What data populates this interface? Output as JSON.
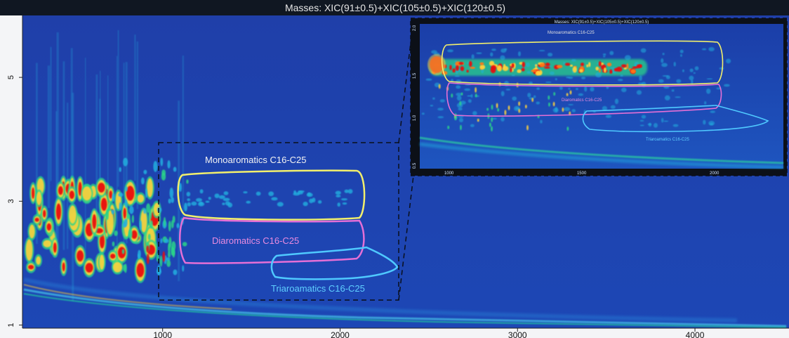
{
  "chart_data": [
    {
      "type": "heatmap",
      "title": "Masses: XIC(91±0.5)+XIC(105±0.5)+XIC(120±0.5)",
      "xlabel": "",
      "ylabel": "",
      "x_ticks": [
        1000,
        2000,
        3000,
        4000
      ],
      "y_ticks": [
        1,
        3,
        5
      ],
      "xlim": [
        210,
        4530
      ],
      "ylim": [
        0.95,
        6.0
      ],
      "colormap": [
        "#1f3ea8",
        "#1e6fd0",
        "#21b0e0",
        "#2ad48a",
        "#ffd23a",
        "#ff7a18",
        "#e81010"
      ],
      "background_color": "#1f3ea8",
      "regions": [
        {
          "label": "Monoaromatics C16-C25",
          "color": "#f2ef6c"
        },
        {
          "label": "Diaromatics C16-C25",
          "color": "#e56fd6"
        },
        {
          "label": "Triaroamatics C16-C25",
          "color": "#4fc9ff"
        }
      ],
      "annotation": "zoom-box"
    },
    {
      "type": "heatmap",
      "title": "Masses: XIC(91±0.5)+XIC(105±0.5)+XIC(120±0.5)",
      "x_ticks": [
        1000,
        1500,
        2000
      ],
      "y_ticks": [
        "2.0",
        "1.5",
        "1.0",
        "0.5"
      ],
      "regions": [
        {
          "label": "Monoaromatics C16-C25",
          "color": "#f2ef6c"
        },
        {
          "label": "Diaromatics C16-C25",
          "color": "#e56fd6"
        },
        {
          "label": "Triaroamatics C16-C25",
          "color": "#4fc9ff"
        }
      ]
    }
  ]
}
